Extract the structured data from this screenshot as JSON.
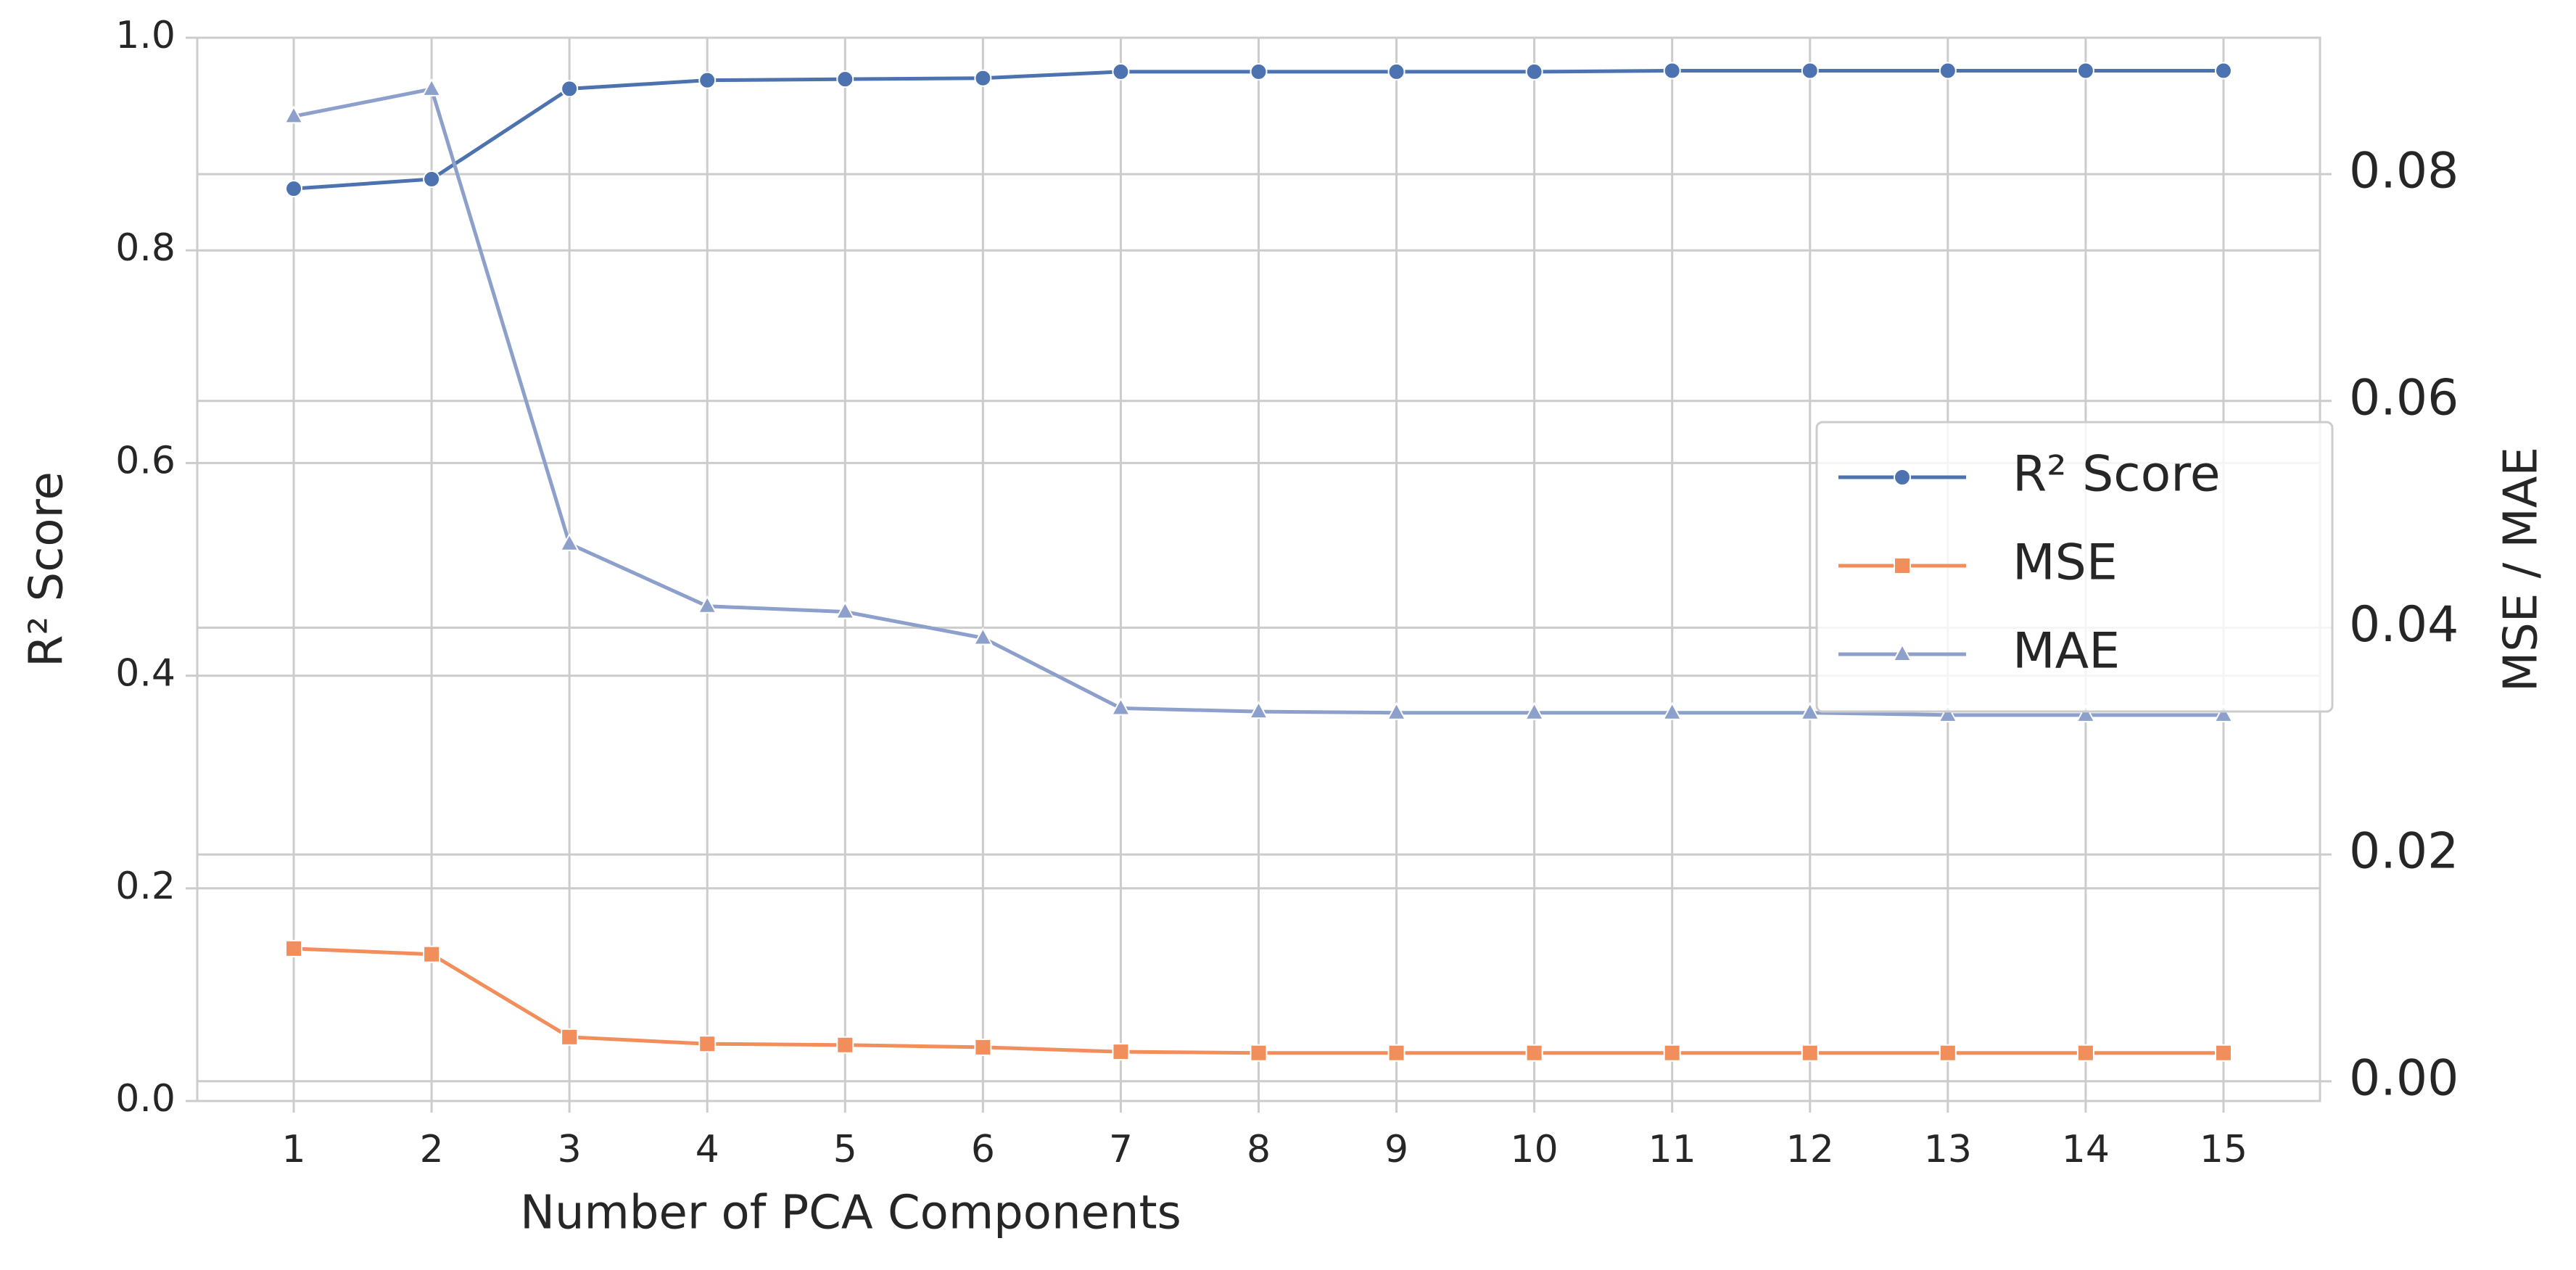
{
  "chart_data": {
    "type": "line",
    "x_label": "Number of PCA Components",
    "y_label": "R² Score",
    "y2_label": "MSE / MAE",
    "x": [
      1,
      2,
      3,
      4,
      5,
      6,
      7,
      8,
      9,
      10,
      11,
      12,
      13,
      14,
      15
    ],
    "xlim": [
      0.3,
      15.7
    ],
    "xticks": [
      1,
      2,
      3,
      4,
      5,
      6,
      7,
      8,
      9,
      10,
      11,
      12,
      13,
      14,
      15
    ],
    "ylim": [
      0,
      1.0
    ],
    "yticks": [
      {
        "value": 0,
        "label": "0.0"
      },
      {
        "value": 0.2,
        "label": "0.2"
      },
      {
        "value": 0.4,
        "label": "0.4"
      },
      {
        "value": 0.6,
        "label": "0.6"
      },
      {
        "value": 0.8,
        "label": "0.8"
      },
      {
        "value": 1.0,
        "label": "1.0"
      }
    ],
    "y2lim": [
      -0.00174,
      0.09203
    ],
    "y2ticks": [
      {
        "value": 0,
        "label": "0.00"
      },
      {
        "value": 0.02,
        "label": "0.02"
      },
      {
        "value": 0.04,
        "label": "0.04"
      },
      {
        "value": 0.06,
        "label": "0.06"
      },
      {
        "value": 0.08,
        "label": "0.08"
      }
    ],
    "grid": true,
    "legend": "center right",
    "series": [
      {
        "name": "R² Score",
        "color": "#4c72b0",
        "marker": "circle",
        "values": [
          0.858,
          0.867,
          0.952,
          0.96,
          0.961,
          0.962,
          0.968,
          0.968,
          0.968,
          0.968,
          0.969,
          0.969,
          0.969,
          0.969,
          0.969
        ]
      },
      {
        "name": "MSE",
        "color": "#f28e5c",
        "marker": "square",
        "axis": "y2",
        "values": [
          0.0117,
          0.0112,
          0.0039,
          0.0033,
          0.0032,
          0.003,
          0.0026,
          0.0025,
          0.0025,
          0.0025,
          0.0025,
          0.0025,
          0.0025,
          0.0025,
          0.0025
        ]
      },
      {
        "name": "MAE",
        "color": "#8da0cb",
        "marker": "triangle",
        "axis": "y2",
        "values": [
          0.0851,
          0.0875,
          0.0474,
          0.0419,
          0.0414,
          0.0391,
          0.0329,
          0.0326,
          0.0325,
          0.0325,
          0.0325,
          0.0325,
          0.0323,
          0.0323,
          0.0323
        ]
      }
    ]
  }
}
